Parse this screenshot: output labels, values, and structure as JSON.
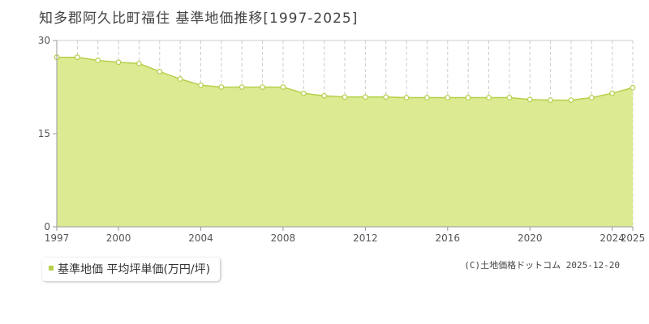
{
  "chart_data": {
    "type": "area",
    "title": "知多郡阿久比町福住 基準地価推移[1997-2025]",
    "x": [
      1997,
      1998,
      1999,
      2000,
      2001,
      2002,
      2003,
      2004,
      2005,
      2006,
      2007,
      2008,
      2009,
      2010,
      2011,
      2012,
      2013,
      2014,
      2015,
      2016,
      2017,
      2018,
      2019,
      2020,
      2021,
      2022,
      2023,
      2024,
      2025
    ],
    "series": [
      {
        "name": "基準地価 平均坪単価(万円/坪)",
        "values": [
          27.3,
          27.3,
          26.8,
          26.5,
          26.3,
          25.0,
          23.8,
          22.8,
          22.5,
          22.5,
          22.5,
          22.5,
          21.5,
          21.1,
          20.9,
          20.9,
          20.9,
          20.8,
          20.8,
          20.8,
          20.8,
          20.8,
          20.8,
          20.5,
          20.4,
          20.4,
          20.8,
          21.5,
          22.4
        ]
      }
    ],
    "xlim": [
      1997,
      2025
    ],
    "ylim": [
      0,
      30
    ],
    "y_ticks": [
      0,
      15,
      30
    ],
    "x_tick_labels": [
      "1997",
      "2000",
      "2004",
      "2008",
      "2012",
      "2016",
      "2020",
      "2024",
      "2025"
    ],
    "xlabel": "",
    "ylabel": "",
    "grid": true,
    "legend_position": "bottom-left",
    "colors": {
      "fill": "#dcea92",
      "line": "#b4d04a",
      "marker_fill": "#ffffff",
      "marker_stroke": "#b4d04a",
      "grid": "#cccccc",
      "axis": "#999999",
      "legend_swatch": "#b4d04a"
    }
  },
  "credit": "(C)土地価格ドットコム 2025-12-20"
}
